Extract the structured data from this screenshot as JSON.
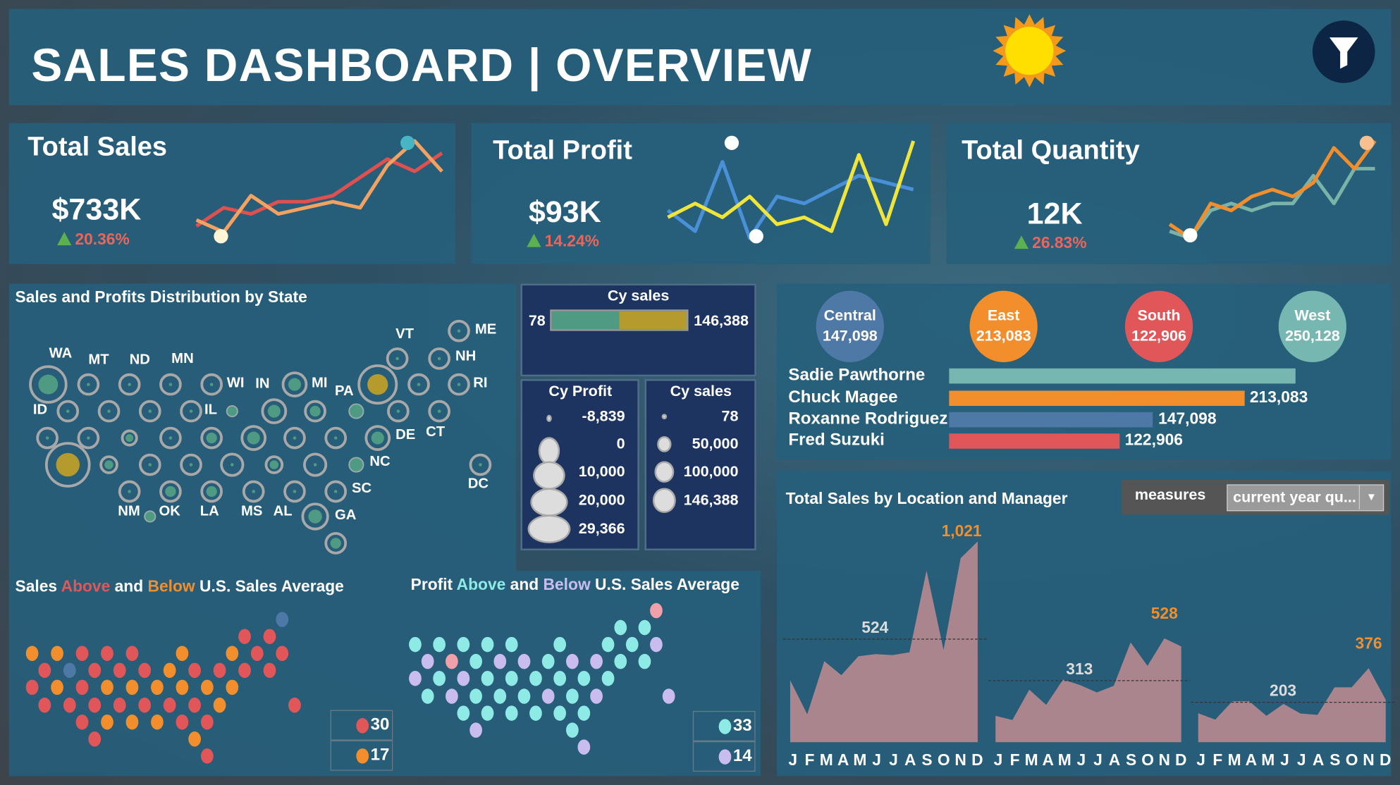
{
  "header": {
    "title": "SALES DASHBOARD | OVERVIEW",
    "icons": [
      "sun-icon",
      "filter-icon"
    ]
  },
  "kpis": [
    {
      "title": "Total Sales",
      "value": "$733K",
      "change": "20.36%",
      "colors": [
        "#e0504f",
        "#f4a261"
      ],
      "series": [
        [
          2,
          5,
          4,
          6,
          6,
          7,
          10,
          13,
          11,
          14
        ],
        [
          3,
          1,
          7,
          4,
          5,
          6,
          5,
          12,
          16,
          11
        ]
      ]
    },
    {
      "title": "Total Profit",
      "value": "$93K",
      "change": "14.24%",
      "colors": [
        "#4a90d9",
        "#f2e53a"
      ],
      "series": [
        [
          4,
          1,
          11,
          0,
          6,
          5,
          7,
          9,
          8,
          7
        ],
        [
          3,
          5,
          3,
          6,
          2,
          3,
          1,
          12,
          2,
          14
        ]
      ]
    },
    {
      "title": "Total Quantity",
      "value": "12K",
      "change": "26.83%",
      "colors": [
        "#7ab3a8",
        "#f28e2b"
      ],
      "series": [
        [
          1,
          0,
          4,
          5,
          4,
          5,
          5,
          9,
          5,
          10,
          10
        ],
        [
          2,
          0,
          5,
          4,
          6,
          7,
          6,
          8,
          13,
          10,
          14
        ]
      ]
    }
  ],
  "state_map": {
    "title": "Sales and Profits Distribution by State",
    "labels": [
      "WA",
      "MT",
      "ND",
      "MN",
      "WI",
      "IN",
      "MI",
      "PA",
      "VT",
      "ME",
      "NH",
      "RI",
      "ID",
      "IL",
      "DE",
      "CT",
      "NC",
      "DC",
      "SC",
      "NM",
      "OK",
      "LA",
      "MS",
      "AL",
      "GA"
    ]
  },
  "legend_sales_bar": {
    "title": "Cy  sales",
    "min": "78",
    "max": "146,388",
    "split": 0.5
  },
  "legend_profit": {
    "title": "Cy  Profit",
    "items": [
      "-8,839",
      "0",
      "10,000",
      "20,000",
      "29,366"
    ]
  },
  "legend_sales": {
    "title": "Cy  sales",
    "items": [
      "78",
      "50,000",
      "100,000",
      "146,388"
    ]
  },
  "regions": [
    {
      "name": "Central",
      "value": "147,098",
      "color": "#4e79a7"
    },
    {
      "name": "East",
      "value": "213,083",
      "color": "#f28e2b"
    },
    {
      "name": "South",
      "value": "122,906",
      "color": "#e15759"
    },
    {
      "name": "West",
      "value": "250,128",
      "color": "#76b7b2"
    }
  ],
  "managers": [
    {
      "name": "Sadie Pawthorne",
      "value": 250128,
      "label": "",
      "color": "#76b7b2"
    },
    {
      "name": "Chuck Magee",
      "value": 213083,
      "label": "213,083",
      "color": "#f28e2b"
    },
    {
      "name": "Roxanne Rodriguez",
      "value": 147098,
      "label": "147,098",
      "color": "#4e79a7"
    },
    {
      "name": "Fred Suzuki",
      "value": 122906,
      "label": "122,906",
      "color": "#e15759"
    }
  ],
  "location_chart": {
    "title": "Total Sales by Location and Manager",
    "measures_label": "measures",
    "measures_value": "current year qu...",
    "chart_data": {
      "type": "area",
      "x": [
        "J",
        "F",
        "M",
        "A",
        "M",
        "J",
        "J",
        "A",
        "S",
        "O",
        "N",
        "D"
      ],
      "series": [
        {
          "values": [
            315,
            142,
            412,
            341,
            437,
            448,
            443,
            457,
            873,
            469,
            936,
            1021
          ],
          "avg": 524,
          "avg_label": "524",
          "max_label": "1,021"
        },
        {
          "values": [
            134,
            113,
            267,
            190,
            318,
            291,
            253,
            287,
            508,
            388,
            528,
            487
          ],
          "avg": 313,
          "avg_label": "313",
          "max_label": "528"
        },
        {
          "values": [
            147,
            115,
            208,
            208,
            134,
            194,
            146,
            139,
            279,
            279,
            376,
            216
          ],
          "avg": 203,
          "avg_label": "203",
          "max_label": "376"
        }
      ],
      "ylim": [
        0,
        1021
      ]
    }
  },
  "sales_avg": {
    "title_parts": [
      "Sales ",
      "Above",
      " and ",
      "Below",
      " U.S. Sales Average"
    ],
    "colors": {
      "a": "#e15759",
      "o": "#f28e2b",
      "b": "#4e79a7"
    },
    "above_count": "30",
    "below_count": "17",
    "rows": [
      {
        "cells": [
          [
            20,
            "b"
          ]
        ]
      },
      {
        "cells": [
          [
            17,
            "a"
          ],
          [
            19,
            "a"
          ]
        ]
      },
      {
        "cells": [
          [
            0,
            "o"
          ],
          [
            2,
            "o"
          ],
          [
            4,
            "a"
          ],
          [
            6,
            "a"
          ],
          [
            8,
            "a"
          ],
          [
            12,
            "o"
          ],
          [
            16,
            "o"
          ],
          [
            18,
            "a"
          ],
          [
            20,
            "a"
          ]
        ]
      },
      {
        "cells": [
          [
            1,
            "a"
          ],
          [
            3,
            "b"
          ],
          [
            5,
            "a"
          ],
          [
            7,
            "a"
          ],
          [
            9,
            "a"
          ],
          [
            11,
            "o"
          ],
          [
            13,
            "a"
          ],
          [
            15,
            "a"
          ],
          [
            17,
            "a"
          ],
          [
            19,
            "a"
          ]
        ]
      },
      {
        "cells": [
          [
            0,
            "a"
          ],
          [
            2,
            "o"
          ],
          [
            4,
            "a"
          ],
          [
            6,
            "o"
          ],
          [
            8,
            "o"
          ],
          [
            10,
            "o"
          ],
          [
            12,
            "o"
          ],
          [
            14,
            "o"
          ],
          [
            16,
            "o"
          ]
        ]
      },
      {
        "cells": [
          [
            1,
            "a"
          ],
          [
            3,
            "a"
          ],
          [
            5,
            "a"
          ],
          [
            7,
            "a"
          ],
          [
            9,
            "a"
          ],
          [
            11,
            "a"
          ],
          [
            13,
            "a"
          ],
          [
            15,
            "o"
          ],
          [
            21,
            "a"
          ]
        ]
      },
      {
        "cells": [
          [
            4,
            "a"
          ],
          [
            6,
            "o"
          ],
          [
            8,
            "o"
          ],
          [
            10,
            "o"
          ],
          [
            12,
            "a"
          ],
          [
            14,
            "a"
          ]
        ]
      },
      {
        "cells": [
          [
            5,
            "a"
          ],
          [
            13,
            "o"
          ]
        ]
      },
      {
        "cells": [
          [
            14,
            "a"
          ]
        ]
      }
    ]
  },
  "profit_avg": {
    "title_parts": [
      "Profit ",
      "Above",
      " and ",
      "Below",
      " U.S. Sales Average"
    ],
    "colors": {
      "c": "#8eeae4",
      "p": "#c8bdee",
      "k": "#f0a0a8"
    },
    "above_count": "33",
    "below_count": "14",
    "rows": [
      {
        "cells": [
          [
            20,
            "k"
          ]
        ]
      },
      {
        "cells": [
          [
            17,
            "c"
          ],
          [
            19,
            "c"
          ]
        ]
      },
      {
        "cells": [
          [
            0,
            "c"
          ],
          [
            2,
            "c"
          ],
          [
            4,
            "c"
          ],
          [
            6,
            "c"
          ],
          [
            8,
            "c"
          ],
          [
            12,
            "c"
          ],
          [
            16,
            "c"
          ],
          [
            18,
            "c"
          ],
          [
            20,
            "p"
          ]
        ]
      },
      {
        "cells": [
          [
            1,
            "p"
          ],
          [
            3,
            "k"
          ],
          [
            5,
            "c"
          ],
          [
            7,
            "p"
          ],
          [
            9,
            "p"
          ],
          [
            11,
            "c"
          ],
          [
            13,
            "p"
          ],
          [
            15,
            "p"
          ],
          [
            17,
            "c"
          ],
          [
            19,
            "c"
          ]
        ]
      },
      {
        "cells": [
          [
            0,
            "p"
          ],
          [
            2,
            "c"
          ],
          [
            4,
            "p"
          ],
          [
            6,
            "c"
          ],
          [
            8,
            "c"
          ],
          [
            10,
            "c"
          ],
          [
            12,
            "c"
          ],
          [
            14,
            "c"
          ],
          [
            16,
            "c"
          ]
        ]
      },
      {
        "cells": [
          [
            1,
            "c"
          ],
          [
            3,
            "p"
          ],
          [
            5,
            "c"
          ],
          [
            7,
            "c"
          ],
          [
            9,
            "c"
          ],
          [
            11,
            "p"
          ],
          [
            13,
            "c"
          ],
          [
            15,
            "p"
          ],
          [
            21,
            "p"
          ]
        ]
      },
      {
        "cells": [
          [
            4,
            "c"
          ],
          [
            6,
            "c"
          ],
          [
            8,
            "c"
          ],
          [
            10,
            "c"
          ],
          [
            12,
            "c"
          ],
          [
            14,
            "c"
          ]
        ]
      },
      {
        "cells": [
          [
            5,
            "p"
          ],
          [
            13,
            "c"
          ]
        ]
      },
      {
        "cells": [
          [
            14,
            "p"
          ]
        ]
      }
    ]
  }
}
